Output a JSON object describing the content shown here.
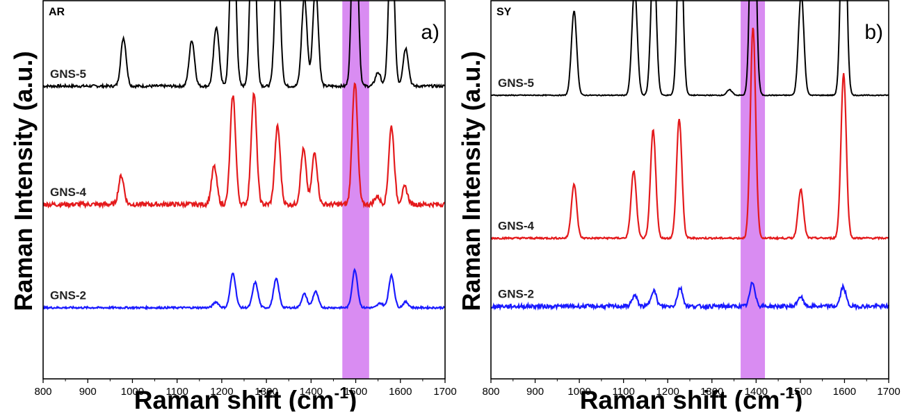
{
  "chart_data": [
    {
      "type": "line",
      "panel_tag": "AR",
      "panel_label": "a)",
      "xlabel": "Raman shift (cm",
      "xlabel_sup": "-1",
      "xlabel_close": ")",
      "ylabel": "Raman Intensity (a.u.)",
      "xlim": [
        800,
        1700
      ],
      "xticks": [
        800,
        900,
        1000,
        1100,
        1200,
        1300,
        1400,
        1500,
        1600,
        1700
      ],
      "highlight_band": [
        1470,
        1530
      ],
      "highlight_color": "#cc66ee",
      "grid": false,
      "series": [
        {
          "name": "GNS-5",
          "color": "#000000",
          "baseline": 2.55,
          "noise": 0.012,
          "peaks": [
            [
              980,
              0.42
            ],
            [
              1133,
              0.4
            ],
            [
              1188,
              0.52
            ],
            [
              1225,
              1.65
            ],
            [
              1270,
              1.7
            ],
            [
              1325,
              1.22
            ],
            [
              1385,
              0.78
            ],
            [
              1410,
              0.88
            ],
            [
              1498,
              2.05
            ],
            [
              1550,
              0.12
            ],
            [
              1580,
              1.4
            ],
            [
              1612,
              0.33
            ]
          ]
        },
        {
          "name": "GNS-4",
          "color": "#e41a1c",
          "baseline": 1.52,
          "noise": 0.02,
          "peaks": [
            [
              975,
              0.25
            ],
            [
              1183,
              0.33
            ],
            [
              1225,
              0.95
            ],
            [
              1272,
              0.97
            ],
            [
              1325,
              0.68
            ],
            [
              1383,
              0.48
            ],
            [
              1408,
              0.45
            ],
            [
              1498,
              1.07
            ],
            [
              1548,
              0.07
            ],
            [
              1580,
              0.68
            ],
            [
              1610,
              0.15
            ]
          ]
        },
        {
          "name": "GNS-2",
          "color": "#1a1aff",
          "baseline": 0.62,
          "noise": 0.008,
          "peaks": [
            [
              1187,
              0.05
            ],
            [
              1225,
              0.3
            ],
            [
              1275,
              0.22
            ],
            [
              1322,
              0.25
            ],
            [
              1385,
              0.12
            ],
            [
              1410,
              0.14
            ],
            [
              1498,
              0.33
            ],
            [
              1555,
              0.04
            ],
            [
              1580,
              0.28
            ],
            [
              1612,
              0.05
            ]
          ]
        }
      ]
    },
    {
      "type": "line",
      "panel_tag": "SY",
      "panel_label": "b)",
      "xlabel": "Raman shift (cm",
      "xlabel_sup": "-1",
      "xlabel_close": ")",
      "ylabel": "Raman Intensity (a.u.)",
      "xlim": [
        800,
        1700
      ],
      "xticks": [
        800,
        900,
        1000,
        1100,
        1200,
        1300,
        1400,
        1500,
        1600,
        1700
      ],
      "highlight_band": [
        1365,
        1420
      ],
      "highlight_color": "#cc66ee",
      "grid": false,
      "series": [
        {
          "name": "GNS-5",
          "color": "#000000",
          "baseline": 2.62,
          "noise": 0.004,
          "peaks": [
            [
              988,
              0.78
            ],
            [
              1125,
              1.0
            ],
            [
              1168,
              1.35
            ],
            [
              1228,
              1.75
            ],
            [
              1340,
              0.05
            ],
            [
              1393,
              2.62
            ],
            [
              1502,
              0.95
            ],
            [
              1598,
              2.4
            ]
          ]
        },
        {
          "name": "GNS-4",
          "color": "#e41a1c",
          "baseline": 1.3,
          "noise": 0.008,
          "peaks": [
            [
              988,
              0.5
            ],
            [
              1123,
              0.62
            ],
            [
              1167,
              1.0
            ],
            [
              1226,
              1.1
            ],
            [
              1393,
              1.95
            ],
            [
              1501,
              0.45
            ],
            [
              1598,
              1.52
            ]
          ]
        },
        {
          "name": "GNS-2",
          "color": "#1a1aff",
          "baseline": 0.67,
          "noise": 0.018,
          "peaks": [
            [
              1125,
              0.1
            ],
            [
              1168,
              0.15
            ],
            [
              1228,
              0.17
            ],
            [
              1392,
              0.22
            ],
            [
              1500,
              0.09
            ],
            [
              1597,
              0.18
            ]
          ]
        }
      ]
    }
  ]
}
